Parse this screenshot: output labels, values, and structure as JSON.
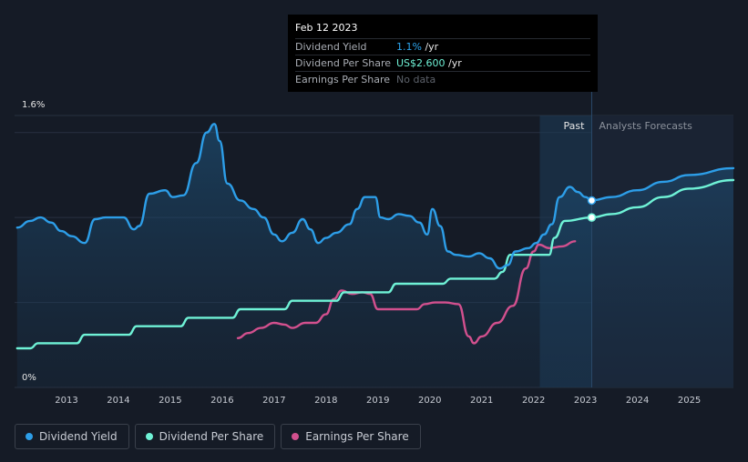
{
  "tooltip": {
    "date": "Feb 12 2023",
    "rows": [
      {
        "label": "Dividend Yield",
        "value_main": "1.1%",
        "value_unit": " /yr"
      },
      {
        "label": "Dividend Per Share",
        "value_main": "US$2.600",
        "value_unit": " /yr"
      },
      {
        "label": "Earnings Per Share",
        "value_main": "No data",
        "value_unit": ""
      }
    ]
  },
  "legend": [
    {
      "label": "Dividend Yield",
      "color": "#2d9ee8"
    },
    {
      "label": "Dividend Per Share",
      "color": "#6ff2d6"
    },
    {
      "label": "Earnings Per Share",
      "color": "#d2508e"
    }
  ],
  "chart_data": {
    "type": "line",
    "y_axis_labels": [
      "1.6%",
      "0%"
    ],
    "ylim": [
      0,
      1.6
    ],
    "xlim": [
      2012.0,
      2025.85
    ],
    "x_ticks": [
      "2013",
      "2014",
      "2015",
      "2016",
      "2017",
      "2018",
      "2019",
      "2020",
      "2021",
      "2022",
      "2023",
      "2024",
      "2025"
    ],
    "past_label": "Past",
    "forecast_label": "Analysts Forecasts",
    "forecast_start": 2023.12,
    "highlight_start": 2022.12,
    "grid": true,
    "series": [
      {
        "name": "Dividend Yield",
        "color": "#2d9ee8",
        "points": [
          [
            2012.05,
            0.94
          ],
          [
            2012.3,
            0.98
          ],
          [
            2012.5,
            1.0
          ],
          [
            2012.7,
            0.97
          ],
          [
            2012.9,
            0.92
          ],
          [
            2013.1,
            0.89
          ],
          [
            2013.35,
            0.85
          ],
          [
            2013.55,
            0.99
          ],
          [
            2013.75,
            1.0
          ],
          [
            2014.1,
            1.0
          ],
          [
            2014.3,
            0.93
          ],
          [
            2014.4,
            0.95
          ],
          [
            2014.6,
            1.14
          ],
          [
            2014.9,
            1.16
          ],
          [
            2015.05,
            1.12
          ],
          [
            2015.25,
            1.13
          ],
          [
            2015.5,
            1.32
          ],
          [
            2015.7,
            1.5
          ],
          [
            2015.85,
            1.55
          ],
          [
            2015.95,
            1.45
          ],
          [
            2016.1,
            1.2
          ],
          [
            2016.35,
            1.1
          ],
          [
            2016.6,
            1.05
          ],
          [
            2016.8,
            1.0
          ],
          [
            2017.0,
            0.9
          ],
          [
            2017.15,
            0.86
          ],
          [
            2017.35,
            0.91
          ],
          [
            2017.55,
            0.99
          ],
          [
            2017.7,
            0.93
          ],
          [
            2017.85,
            0.85
          ],
          [
            2018.0,
            0.88
          ],
          [
            2018.2,
            0.91
          ],
          [
            2018.45,
            0.96
          ],
          [
            2018.6,
            1.05
          ],
          [
            2018.75,
            1.12
          ],
          [
            2018.95,
            1.12
          ],
          [
            2019.05,
            1.0
          ],
          [
            2019.2,
            0.99
          ],
          [
            2019.4,
            1.02
          ],
          [
            2019.6,
            1.01
          ],
          [
            2019.8,
            0.97
          ],
          [
            2019.95,
            0.9
          ],
          [
            2020.05,
            1.05
          ],
          [
            2020.2,
            0.95
          ],
          [
            2020.35,
            0.8
          ],
          [
            2020.5,
            0.78
          ],
          [
            2020.75,
            0.77
          ],
          [
            2020.95,
            0.79
          ],
          [
            2021.15,
            0.76
          ],
          [
            2021.35,
            0.7
          ],
          [
            2021.5,
            0.72
          ],
          [
            2021.65,
            0.8
          ],
          [
            2021.9,
            0.82
          ],
          [
            2022.05,
            0.85
          ],
          [
            2022.2,
            0.9
          ],
          [
            2022.35,
            0.96
          ],
          [
            2022.5,
            1.12
          ],
          [
            2022.7,
            1.18
          ],
          [
            2022.85,
            1.15
          ],
          [
            2023.0,
            1.12
          ],
          [
            2023.12,
            1.1
          ],
          [
            2023.5,
            1.12
          ],
          [
            2024.0,
            1.16
          ],
          [
            2024.5,
            1.21
          ],
          [
            2025.0,
            1.25
          ],
          [
            2025.85,
            1.29
          ]
        ]
      },
      {
        "name": "Dividend Per Share",
        "color": "#6ff2d6",
        "points": [
          [
            2012.05,
            0.23
          ],
          [
            2012.3,
            0.23
          ],
          [
            2012.45,
            0.26
          ],
          [
            2013.2,
            0.26
          ],
          [
            2013.35,
            0.31
          ],
          [
            2014.2,
            0.31
          ],
          [
            2014.35,
            0.36
          ],
          [
            2015.2,
            0.36
          ],
          [
            2015.35,
            0.41
          ],
          [
            2016.2,
            0.41
          ],
          [
            2016.35,
            0.46
          ],
          [
            2017.2,
            0.46
          ],
          [
            2017.35,
            0.51
          ],
          [
            2018.2,
            0.51
          ],
          [
            2018.35,
            0.56
          ],
          [
            2019.2,
            0.56
          ],
          [
            2019.35,
            0.61
          ],
          [
            2020.25,
            0.61
          ],
          [
            2020.4,
            0.64
          ],
          [
            2021.25,
            0.64
          ],
          [
            2021.4,
            0.68
          ],
          [
            2021.55,
            0.78
          ],
          [
            2022.3,
            0.78
          ],
          [
            2022.4,
            0.88
          ],
          [
            2022.6,
            0.98
          ],
          [
            2023.12,
            1.0
          ],
          [
            2023.5,
            1.02
          ],
          [
            2024.0,
            1.06
          ],
          [
            2024.5,
            1.12
          ],
          [
            2025.0,
            1.17
          ],
          [
            2025.85,
            1.22
          ]
        ]
      },
      {
        "name": "Earnings Per Share",
        "color": "#d2508e",
        "points": [
          [
            2016.3,
            0.29
          ],
          [
            2016.5,
            0.32
          ],
          [
            2016.75,
            0.35
          ],
          [
            2017.0,
            0.38
          ],
          [
            2017.2,
            0.37
          ],
          [
            2017.35,
            0.35
          ],
          [
            2017.6,
            0.38
          ],
          [
            2017.8,
            0.38
          ],
          [
            2018.0,
            0.43
          ],
          [
            2018.15,
            0.52
          ],
          [
            2018.3,
            0.57
          ],
          [
            2018.5,
            0.55
          ],
          [
            2018.7,
            0.56
          ],
          [
            2018.85,
            0.55
          ],
          [
            2019.0,
            0.46
          ],
          [
            2019.2,
            0.46
          ],
          [
            2019.5,
            0.46
          ],
          [
            2019.75,
            0.46
          ],
          [
            2019.9,
            0.49
          ],
          [
            2020.1,
            0.5
          ],
          [
            2020.3,
            0.5
          ],
          [
            2020.55,
            0.49
          ],
          [
            2020.75,
            0.3
          ],
          [
            2020.85,
            0.26
          ],
          [
            2021.0,
            0.3
          ],
          [
            2021.3,
            0.38
          ],
          [
            2021.6,
            0.48
          ],
          [
            2021.85,
            0.7
          ],
          [
            2022.0,
            0.8
          ],
          [
            2022.1,
            0.84
          ],
          [
            2022.3,
            0.82
          ],
          [
            2022.55,
            0.83
          ],
          [
            2022.8,
            0.86
          ]
        ]
      }
    ]
  }
}
